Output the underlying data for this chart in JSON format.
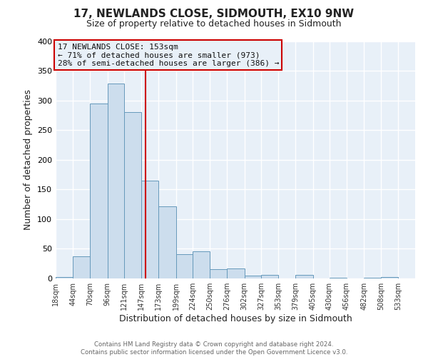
{
  "title": "17, NEWLANDS CLOSE, SIDMOUTH, EX10 9NW",
  "subtitle": "Size of property relative to detached houses in Sidmouth",
  "xlabel": "Distribution of detached houses by size in Sidmouth",
  "ylabel": "Number of detached properties",
  "bar_left_edges": [
    18,
    44,
    70,
    96,
    121,
    147,
    173,
    199,
    224,
    250,
    276,
    302,
    327,
    353,
    379,
    405,
    430,
    456,
    482,
    508
  ],
  "bar_heights": [
    3,
    37,
    295,
    328,
    280,
    165,
    122,
    41,
    46,
    16,
    17,
    5,
    6,
    0,
    6,
    0,
    1,
    0,
    1,
    2
  ],
  "bar_widths": [
    26,
    26,
    26,
    25,
    26,
    26,
    26,
    25,
    26,
    26,
    26,
    25,
    26,
    26,
    26,
    25,
    26,
    26,
    26,
    25
  ],
  "tick_labels": [
    "18sqm",
    "44sqm",
    "70sqm",
    "96sqm",
    "121sqm",
    "147sqm",
    "173sqm",
    "199sqm",
    "224sqm",
    "250sqm",
    "276sqm",
    "302sqm",
    "327sqm",
    "353sqm",
    "379sqm",
    "405sqm",
    "430sqm",
    "456sqm",
    "482sqm",
    "508sqm",
    "533sqm"
  ],
  "tick_positions": [
    18,
    44,
    70,
    96,
    121,
    147,
    173,
    199,
    224,
    250,
    276,
    302,
    327,
    353,
    379,
    405,
    430,
    456,
    482,
    508,
    533
  ],
  "bar_color": "#ccdded",
  "bar_edge_color": "#6699bb",
  "vline_x": 153,
  "vline_color": "#cc0000",
  "ylim": [
    0,
    400
  ],
  "xlim": [
    18,
    559
  ],
  "annotation_title": "17 NEWLANDS CLOSE: 153sqm",
  "annotation_line1": "← 71% of detached houses are smaller (973)",
  "annotation_line2": "28% of semi-detached houses are larger (386) →",
  "annotation_box_color": "#cc0000",
  "footer_line1": "Contains HM Land Registry data © Crown copyright and database right 2024.",
  "footer_line2": "Contains public sector information licensed under the Open Government Licence v3.0.",
  "plot_bg_color": "#e8f0f8",
  "fig_bg_color": "#ffffff",
  "grid_color": "#ffffff"
}
